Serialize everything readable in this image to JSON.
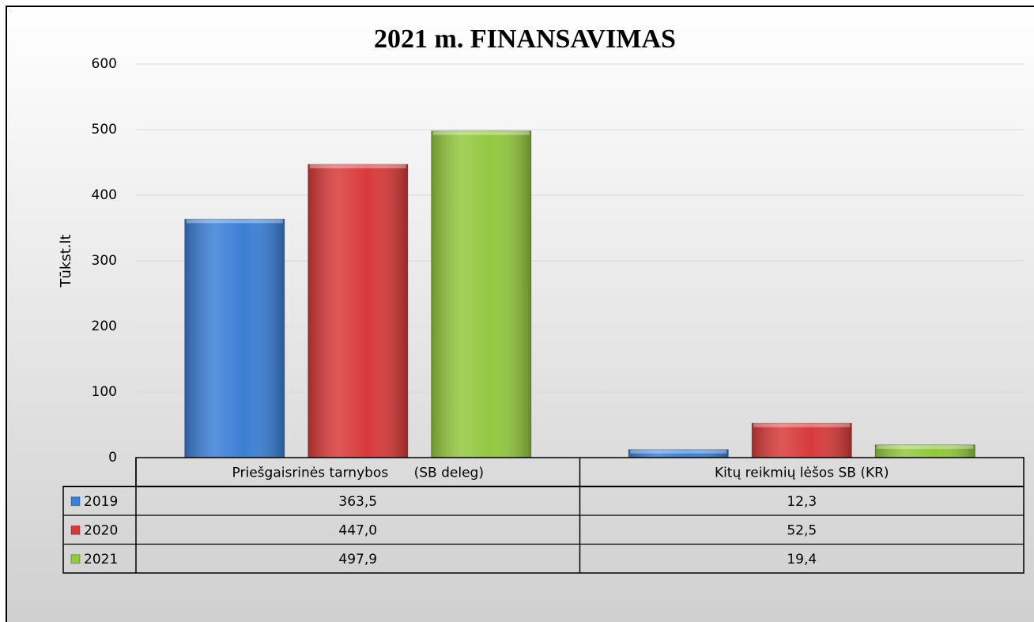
{
  "chart_data": {
    "type": "bar",
    "title": "2021 m. FINANSAVIMAS",
    "y_label": "Tūkst.lt",
    "categories": [
      "Priešgaisrinės tarnybos      (SB deleg)",
      "Kitų reikmių lėšos SB (KR)"
    ],
    "series": [
      {
        "name": "2019",
        "color": "#3b7fd6",
        "values": [
          363.5,
          12.3
        ],
        "value_labels": [
          "363,5",
          "12,3"
        ]
      },
      {
        "name": "2020",
        "color": "#d83a3a",
        "values": [
          447.0,
          52.5
        ],
        "value_labels": [
          "447,0",
          "52,5"
        ]
      },
      {
        "name": "2021",
        "color": "#93c83f",
        "values": [
          497.9,
          19.4
        ],
        "value_labels": [
          "497,9",
          "19,4"
        ]
      }
    ],
    "ylim": [
      0,
      600
    ],
    "yticks": [
      0,
      100,
      200,
      300,
      400,
      500,
      600
    ],
    "grid": true,
    "data_table": true
  }
}
